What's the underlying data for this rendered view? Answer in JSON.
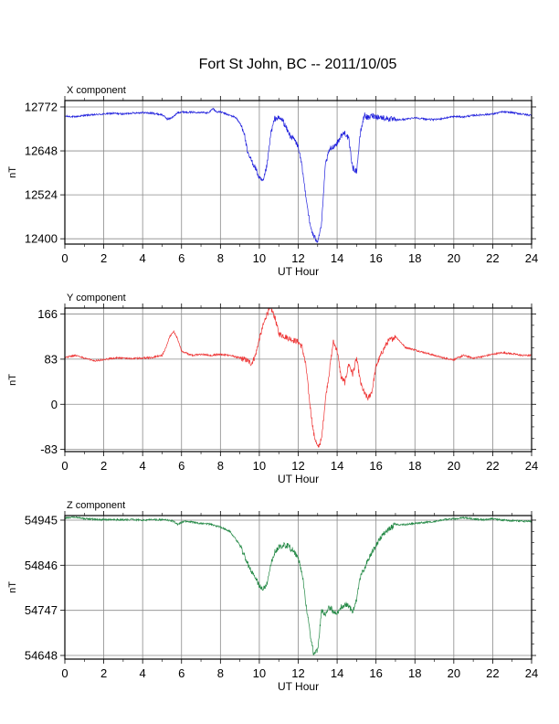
{
  "chart_data": {
    "title": "Fort St John, BC -- 2011/10/05",
    "type": "line",
    "xlabel": "UT Hour",
    "xlim": [
      0,
      24
    ],
    "x_ticks": [
      0,
      2,
      4,
      6,
      8,
      10,
      12,
      14,
      16,
      18,
      20,
      22,
      24
    ],
    "grid": true,
    "panels": [
      {
        "name": "X component",
        "ylabel": "nT",
        "color": "#2222dd",
        "ylim": [
          12385,
          12790
        ],
        "y_ticks": [
          12400,
          12524,
          12648,
          12772
        ],
        "x": [
          0,
          0.5,
          1,
          1.5,
          2,
          2.5,
          3,
          3.5,
          4,
          4.5,
          5,
          5.3,
          5.6,
          5.8,
          6,
          6.5,
          7,
          7.4,
          7.6,
          7.8,
          8,
          8.3,
          8.6,
          8.8,
          9,
          9.2,
          9.4,
          9.6,
          9.8,
          10,
          10.2,
          10.4,
          10.6,
          10.8,
          11,
          11.2,
          11.4,
          11.6,
          11.8,
          12,
          12.2,
          12.4,
          12.6,
          12.8,
          13,
          13.2,
          13.4,
          13.6,
          13.8,
          14,
          14.2,
          14.4,
          14.6,
          14.8,
          15,
          15.2,
          15.4,
          15.6,
          15.8,
          16,
          16.5,
          17,
          17.5,
          18,
          18.5,
          19,
          19.5,
          20,
          20.5,
          21,
          21.5,
          22,
          22.5,
          23,
          23.5,
          24
        ],
        "y": [
          12746,
          12744,
          12748,
          12750,
          12752,
          12754,
          12752,
          12755,
          12756,
          12754,
          12750,
          12737,
          12745,
          12756,
          12758,
          12757,
          12757,
          12755,
          12768,
          12758,
          12758,
          12752,
          12746,
          12742,
          12725,
          12705,
          12640,
          12620,
          12600,
          12570,
          12560,
          12610,
          12700,
          12740,
          12740,
          12735,
          12710,
          12690,
          12680,
          12660,
          12600,
          12520,
          12440,
          12405,
          12395,
          12440,
          12610,
          12650,
          12660,
          12670,
          12690,
          12700,
          12680,
          12600,
          12590,
          12700,
          12750,
          12740,
          12748,
          12745,
          12740,
          12735,
          12737,
          12742,
          12738,
          12736,
          12740,
          12745,
          12744,
          12748,
          12750,
          12752,
          12758,
          12756,
          12752,
          12748
        ]
      },
      {
        "name": "Y component",
        "ylabel": "nT",
        "color": "#ee3333",
        "ylim": [
          -87,
          177
        ],
        "y_ticks": [
          -83,
          0,
          83,
          166
        ],
        "x": [
          0,
          0.5,
          1,
          1.5,
          2,
          2.5,
          3,
          3.5,
          4,
          4.5,
          5,
          5.2,
          5.4,
          5.6,
          5.8,
          6,
          6.2,
          6.5,
          7,
          7.5,
          8,
          8.5,
          9,
          9.3,
          9.6,
          9.8,
          10,
          10.2,
          10.4,
          10.6,
          10.8,
          11,
          11.3,
          11.6,
          12,
          12.2,
          12.4,
          12.6,
          12.8,
          13,
          13.2,
          13.4,
          13.6,
          13.8,
          14,
          14.2,
          14.4,
          14.6,
          14.8,
          15,
          15.2,
          15.4,
          15.6,
          15.8,
          16,
          16.3,
          16.6,
          17,
          17.5,
          18,
          18.5,
          19,
          19.5,
          20,
          20.5,
          21,
          21.5,
          22,
          22.5,
          23,
          23.5,
          24
        ],
        "y": [
          86,
          90,
          85,
          80,
          82,
          85,
          85,
          84,
          85,
          86,
          90,
          105,
          125,
          135,
          120,
          98,
          95,
          90,
          92,
          90,
          92,
          90,
          85,
          82,
          75,
          90,
          120,
          145,
          168,
          176,
          160,
          130,
          125,
          120,
          115,
          105,
          70,
          0,
          -55,
          -80,
          -65,
          10,
          60,
          115,
          100,
          50,
          40,
          75,
          55,
          85,
          40,
          20,
          10,
          25,
          70,
          95,
          115,
          125,
          105,
          100,
          95,
          90,
          85,
          82,
          90,
          85,
          88,
          92,
          95,
          93,
          90,
          90
        ]
      },
      {
        "name": "Z component",
        "ylabel": "nT",
        "color": "#228844",
        "ylim": [
          54640,
          54955
        ],
        "y_ticks": [
          54648,
          54747,
          54846,
          54945
        ],
        "x": [
          0,
          0.5,
          1,
          1.5,
          2,
          2.5,
          3,
          3.5,
          4,
          4.5,
          5,
          5.5,
          5.8,
          6,
          6.3,
          6.6,
          7,
          7.5,
          8,
          8.5,
          9,
          9.3,
          9.6,
          9.8,
          10,
          10.2,
          10.4,
          10.6,
          10.8,
          11,
          11.2,
          11.5,
          11.8,
          12,
          12.2,
          12.4,
          12.6,
          12.8,
          13,
          13.2,
          13.4,
          13.6,
          13.8,
          14,
          14.2,
          14.5,
          14.8,
          15,
          15.2,
          15.5,
          15.8,
          16,
          16.3,
          16.6,
          17,
          17.5,
          18,
          18.5,
          19,
          19.5,
          20,
          20.5,
          21,
          21.5,
          22,
          22.5,
          23,
          23.5,
          24
        ],
        "y": [
          54950,
          54952,
          54948,
          54947,
          54946,
          54946,
          54946,
          54946,
          54945,
          54946,
          54946,
          54944,
          54936,
          54940,
          54943,
          54940,
          54938,
          54936,
          54930,
          54920,
          54890,
          54860,
          54830,
          54820,
          54800,
          54795,
          54805,
          54850,
          54875,
          54885,
          54890,
          54888,
          54875,
          54860,
          54830,
          54760,
          54700,
          54650,
          54660,
          54745,
          54735,
          54755,
          54745,
          54740,
          54755,
          54760,
          54745,
          54770,
          54820,
          54850,
          54875,
          54890,
          54910,
          54925,
          54935,
          54935,
          54938,
          54940,
          54942,
          54946,
          54948,
          54950,
          54948,
          54946,
          54948,
          54945,
          54944,
          54943,
          54942
        ]
      }
    ]
  }
}
